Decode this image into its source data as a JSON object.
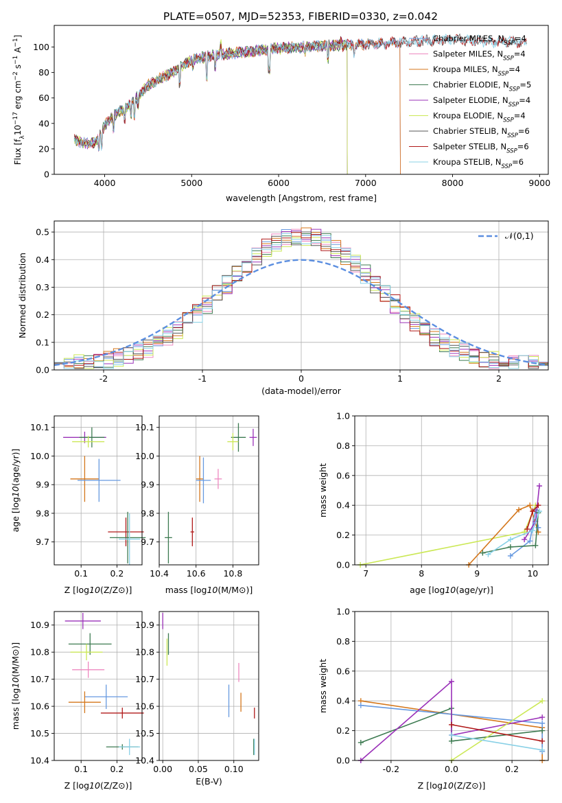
{
  "figure": {
    "title": "PLATE=0507, MJD=52353, FIBERID=0330, z=0.042"
  },
  "chart_data": [
    {
      "id": "spectrum",
      "type": "line",
      "xlabel": "wavelength [Angstrom, rest frame]",
      "ylabel": "Flux [f_λ 10^-17 erg cm^-2 s^-1 A^-1]",
      "xlim": [
        3420,
        9100
      ],
      "ylim": [
        0,
        117
      ],
      "xticks": [
        4000,
        5000,
        6000,
        7000,
        8000,
        9000
      ],
      "yticks": [
        0,
        20,
        40,
        60,
        80,
        100
      ],
      "grid": false,
      "legend_position": "top-right",
      "series": [
        {
          "name": "Chabrier MILES, N_SSP=4",
          "label": "Chabrier MILES, N",
          "sub": "SSP",
          "suffix": "=4",
          "color": "#6699e0",
          "x_end": 7400
        },
        {
          "name": "Salpeter MILES, N_SSP=4",
          "label": "Salpeter MILES, N",
          "sub": "SSP",
          "suffix": "=4",
          "color": "#ee88c0",
          "x_end": 7400
        },
        {
          "name": "Kroupa MILES, N_SSP=4",
          "label": "Kroupa MILES, N",
          "sub": "SSP",
          "suffix": "=4",
          "color": "#d4761a",
          "x_end": 7400
        },
        {
          "name": "Chabrier ELODIE, N_SSP=5",
          "label": "Chabrier ELODIE, N",
          "sub": "SSP",
          "suffix": "=5",
          "color": "#3c7a50",
          "x_end": 6790
        },
        {
          "name": "Salpeter ELODIE, N_SSP=4",
          "label": "Salpeter ELODIE, N",
          "sub": "SSP",
          "suffix": "=4",
          "color": "#9a30b8",
          "x_end": 6790
        },
        {
          "name": "Kroupa ELODIE, N_SSP=4",
          "label": "Kroupa ELODIE, N",
          "sub": "SSP",
          "suffix": "=4",
          "color": "#cbe855",
          "x_end": 6790
        },
        {
          "name": "Chabrier STELIB, N_SSP=6",
          "label": "Chabrier STELIB, N",
          "sub": "SSP",
          "suffix": "=6",
          "color": "#555555",
          "x_end": 8850
        },
        {
          "name": "Salpeter STELIB, N_SSP=6",
          "label": "Salpeter STELIB, N",
          "sub": "SSP",
          "suffix": "=6",
          "color": "#b01818",
          "x_end": 8850
        },
        {
          "name": "Kroupa STELIB, N_SSP=6",
          "label": "Kroupa STELIB, N",
          "sub": "SSP",
          "suffix": "=6",
          "color": "#88d0e6",
          "x_end": 8850
        }
      ],
      "continuum_knots": {
        "x": [
          3650,
          3800,
          3900,
          4000,
          4100,
          4300,
          4500,
          4800,
          5000,
          5300,
          5600,
          6000,
          6500,
          7000,
          7500,
          8000,
          8500,
          8850
        ],
        "y": [
          27,
          24,
          25,
          38,
          46,
          55,
          70,
          81,
          90,
          94,
          96,
          99,
          101,
          102,
          104,
          106,
          104,
          104
        ]
      }
    },
    {
      "id": "residual-histogram",
      "type": "bar",
      "xlabel": "(data-model)/error",
      "ylabel": "Normed distribution",
      "xlim": [
        -2.5,
        2.5
      ],
      "ylim": [
        0,
        0.54
      ],
      "xticks": [
        -2,
        -1,
        0,
        1,
        2
      ],
      "yticks": [
        0.0,
        0.1,
        0.2,
        0.3,
        0.4,
        0.5
      ],
      "grid": true,
      "legend_position": "top-right",
      "legend": "𝒩(0,1)",
      "bin_width": 0.1,
      "reference_curve": {
        "name": "𝒩(0,1)",
        "mean": 0,
        "sigma": 1,
        "color": "#5b8ee0"
      }
    },
    {
      "id": "age-vs-Z",
      "type": "scatter",
      "xlabel": "Z [log10(Z/Z⊙)]",
      "ylabel": "age [log10(age/yr)]",
      "xlim": [
        0.025,
        0.27
      ],
      "ylim": [
        9.62,
        10.14
      ],
      "xticks": [
        0.1,
        0.2
      ],
      "yticks": [
        9.7,
        9.8,
        9.9,
        10.0,
        10.1
      ],
      "grid": true,
      "points": [
        {
          "x": 0.11,
          "y": 10.065,
          "xerr": 0.06,
          "yerr": 0.02,
          "color": "#9a30b8"
        },
        {
          "x": 0.13,
          "y": 10.065,
          "xerr": 0.035,
          "yerr": 0.035,
          "color": "#3c7a50"
        },
        {
          "x": 0.12,
          "y": 10.05,
          "xerr": 0.045,
          "yerr": 0.02,
          "color": "#cbe855"
        },
        {
          "x": 0.11,
          "y": 9.92,
          "xerr": 0.04,
          "yerr": 0.08,
          "color": "#d4761a"
        },
        {
          "x": 0.15,
          "y": 9.915,
          "xerr": 0.06,
          "yerr": 0.075,
          "color": "#6699e0"
        },
        {
          "x": 0.225,
          "y": 9.735,
          "xerr": 0.05,
          "yerr": 0.05,
          "color": "#b01818"
        },
        {
          "x": 0.23,
          "y": 9.715,
          "xerr": 0.05,
          "yerr": 0.09,
          "color": "#3c7a50"
        },
        {
          "x": 0.235,
          "y": 9.71,
          "xerr": 0.03,
          "yerr": 0.09,
          "color": "#88d0e6"
        }
      ]
    },
    {
      "id": "age-vs-mass",
      "type": "scatter",
      "xlabel": "mass [log10(M/M⊙)]",
      "ylabel": "",
      "xlim": [
        10.4,
        10.94
      ],
      "ylim": [
        9.62,
        10.14
      ],
      "xticks": [
        10.4,
        10.6,
        10.8
      ],
      "yticks": [
        9.7,
        9.8,
        9.9,
        10.0,
        10.1
      ],
      "grid": true,
      "points": [
        {
          "x": 10.91,
          "y": 10.065,
          "xerr": 0.02,
          "yerr": 0.03,
          "color": "#9a30b8"
        },
        {
          "x": 10.83,
          "y": 10.065,
          "xerr": 0.04,
          "yerr": 0.05,
          "color": "#3c7a50"
        },
        {
          "x": 10.8,
          "y": 10.05,
          "xerr": 0.03,
          "yerr": 0.03,
          "color": "#cbe855"
        },
        {
          "x": 10.72,
          "y": 9.92,
          "xerr": 0.02,
          "yerr": 0.035,
          "color": "#ee88c0"
        },
        {
          "x": 10.62,
          "y": 9.92,
          "xerr": 0.02,
          "yerr": 0.08,
          "color": "#d4761a"
        },
        {
          "x": 10.64,
          "y": 9.915,
          "xerr": 0.04,
          "yerr": 0.08,
          "color": "#6699e0"
        },
        {
          "x": 10.58,
          "y": 9.735,
          "xerr": 0.01,
          "yerr": 0.05,
          "color": "#b01818"
        },
        {
          "x": 10.45,
          "y": 9.715,
          "xerr": 0.02,
          "yerr": 0.09,
          "color": "#3c7a50"
        }
      ]
    },
    {
      "id": "massweight-vs-age",
      "type": "line",
      "xlabel": "age [log10(age/yr)]",
      "ylabel": "mass weight",
      "xlim": [
        6.8,
        10.28
      ],
      "ylim": [
        0,
        1.0
      ],
      "xticks": [
        7,
        8,
        9,
        10
      ],
      "yticks": [
        0.0,
        0.2,
        0.4,
        0.6,
        0.8,
        1.0
      ],
      "grid": true,
      "series": [
        {
          "color": "#cbe855",
          "x": [
            6.9,
            9.85,
            10.05
          ],
          "y": [
            0.0,
            0.22,
            0.4
          ]
        },
        {
          "color": "#d4761a",
          "x": [
            8.85,
            9.75,
            9.95,
            10.1
          ],
          "y": [
            0.0,
            0.37,
            0.4,
            0.22
          ]
        },
        {
          "color": "#6699e0",
          "x": [
            9.6,
            9.95,
            10.05,
            10.1
          ],
          "y": [
            0.06,
            0.16,
            0.37,
            0.25
          ]
        },
        {
          "color": "#9a30b8",
          "x": [
            9.85,
            10.05,
            10.12
          ],
          "y": [
            0.17,
            0.29,
            0.53
          ]
        },
        {
          "color": "#3c7a50",
          "x": [
            9.1,
            9.6,
            10.05,
            10.1
          ],
          "y": [
            0.08,
            0.12,
            0.13,
            0.35
          ]
        },
        {
          "color": "#88d0e6",
          "x": [
            9.2,
            9.6,
            10.0,
            10.12
          ],
          "y": [
            0.07,
            0.17,
            0.23,
            0.36
          ]
        },
        {
          "color": "#b01818",
          "x": [
            9.9,
            10.0,
            10.1
          ],
          "y": [
            0.24,
            0.36,
            0.4
          ]
        }
      ]
    },
    {
      "id": "mass-vs-Z",
      "type": "scatter",
      "xlabel": "Z [log10(Z/Z⊙)]",
      "ylabel": "mass [log10(M/M⊙)]",
      "xlim": [
        0.025,
        0.27
      ],
      "ylim": [
        10.4,
        10.95
      ],
      "xticks": [
        0.1,
        0.2
      ],
      "yticks": [
        10.4,
        10.5,
        10.6,
        10.7,
        10.8,
        10.9
      ],
      "grid": true,
      "points": [
        {
          "x": 0.105,
          "y": 10.915,
          "xerr": 0.05,
          "yerr": 0.03,
          "color": "#9a30b8"
        },
        {
          "x": 0.125,
          "y": 10.83,
          "xerr": 0.06,
          "yerr": 0.04,
          "color": "#3c7a50"
        },
        {
          "x": 0.115,
          "y": 10.8,
          "xerr": 0.045,
          "yerr": 0.03,
          "color": "#cbe855"
        },
        {
          "x": 0.12,
          "y": 10.735,
          "xerr": 0.045,
          "yerr": 0.03,
          "color": "#ee88c0"
        },
        {
          "x": 0.17,
          "y": 10.635,
          "xerr": 0.06,
          "yerr": 0.045,
          "color": "#6699e0"
        },
        {
          "x": 0.11,
          "y": 10.615,
          "xerr": 0.045,
          "yerr": 0.04,
          "color": "#d4761a"
        },
        {
          "x": 0.215,
          "y": 10.575,
          "xerr": 0.06,
          "yerr": 0.02,
          "color": "#b01818"
        },
        {
          "x": 0.215,
          "y": 10.45,
          "xerr": 0.045,
          "yerr": 0.01,
          "color": "#3c7a50"
        },
        {
          "x": 0.235,
          "y": 10.45,
          "xerr": 0.03,
          "yerr": 0.03,
          "color": "#88d0e6"
        }
      ]
    },
    {
      "id": "mass-vs-ebv",
      "type": "scatter",
      "xlabel": "E(B-V)",
      "ylabel": "",
      "xlim": [
        -0.005,
        0.135
      ],
      "ylim": [
        10.4,
        10.95
      ],
      "xticks": [
        0.0,
        0.05,
        0.1
      ],
      "yticks": [
        10.4,
        10.5,
        10.6,
        10.7,
        10.8,
        10.9
      ],
      "grid": true,
      "points": [
        {
          "x": 0.0,
          "y": 10.915,
          "xerr": 0,
          "yerr": 0.03,
          "color": "#9a30b8"
        },
        {
          "x": 0.008,
          "y": 10.83,
          "xerr": 0,
          "yerr": 0.04,
          "color": "#3c7a50"
        },
        {
          "x": 0.006,
          "y": 10.8,
          "xerr": 0,
          "yerr": 0.05,
          "color": "#cbe855"
        },
        {
          "x": 0.107,
          "y": 10.725,
          "xerr": 0,
          "yerr": 0.035,
          "color": "#ee88c0"
        },
        {
          "x": 0.11,
          "y": 10.615,
          "xerr": 0,
          "yerr": 0.035,
          "color": "#d4761a"
        },
        {
          "x": 0.093,
          "y": 10.62,
          "xerr": 0,
          "yerr": 0.06,
          "color": "#6699e0"
        },
        {
          "x": 0.129,
          "y": 10.575,
          "xerr": 0,
          "yerr": 0.02,
          "color": "#b01818"
        },
        {
          "x": 0.128,
          "y": 10.45,
          "xerr": 0,
          "yerr": 0.03,
          "color": "#3c7a50"
        },
        {
          "x": 0.129,
          "y": 10.45,
          "xerr": 0,
          "yerr": 0.03,
          "color": "#88d0e6"
        }
      ]
    },
    {
      "id": "massweight-vs-Z",
      "type": "line",
      "xlabel": "Z [log10(Z/Z⊙)]",
      "ylabel": "mass weight",
      "xlim": [
        -0.32,
        0.32
      ],
      "ylim": [
        0,
        1.0
      ],
      "xticks": [
        -0.2,
        0.0,
        0.2
      ],
      "yticks": [
        0.0,
        0.2,
        0.4,
        0.6,
        0.8,
        1.0
      ],
      "grid": true,
      "series": [
        {
          "color": "#d4761a",
          "x": [
            -0.3,
            0.3,
            0.3
          ],
          "y": [
            0.4,
            0.22,
            0.0
          ]
        },
        {
          "color": "#6699e0",
          "x": [
            -0.3,
            0.3,
            0.3
          ],
          "y": [
            0.37,
            0.25,
            0.06
          ]
        },
        {
          "color": "#3c7a50",
          "x": [
            -0.3,
            0.0,
            0.0,
            0.3
          ],
          "y": [
            0.12,
            0.35,
            0.13,
            0.2
          ]
        },
        {
          "color": "#9a30b8",
          "x": [
            -0.3,
            0.0,
            0.0,
            0.3
          ],
          "y": [
            0.0,
            0.53,
            0.17,
            0.29
          ]
        },
        {
          "color": "#cbe855",
          "x": [
            0.0,
            0.3
          ],
          "y": [
            0.0,
            0.4
          ]
        },
        {
          "color": "#b01818",
          "x": [
            0.0,
            0.3
          ],
          "y": [
            0.24,
            0.13
          ]
        },
        {
          "color": "#88d0e6",
          "x": [
            0.0,
            0.3
          ],
          "y": [
            0.17,
            0.07
          ]
        }
      ]
    }
  ]
}
